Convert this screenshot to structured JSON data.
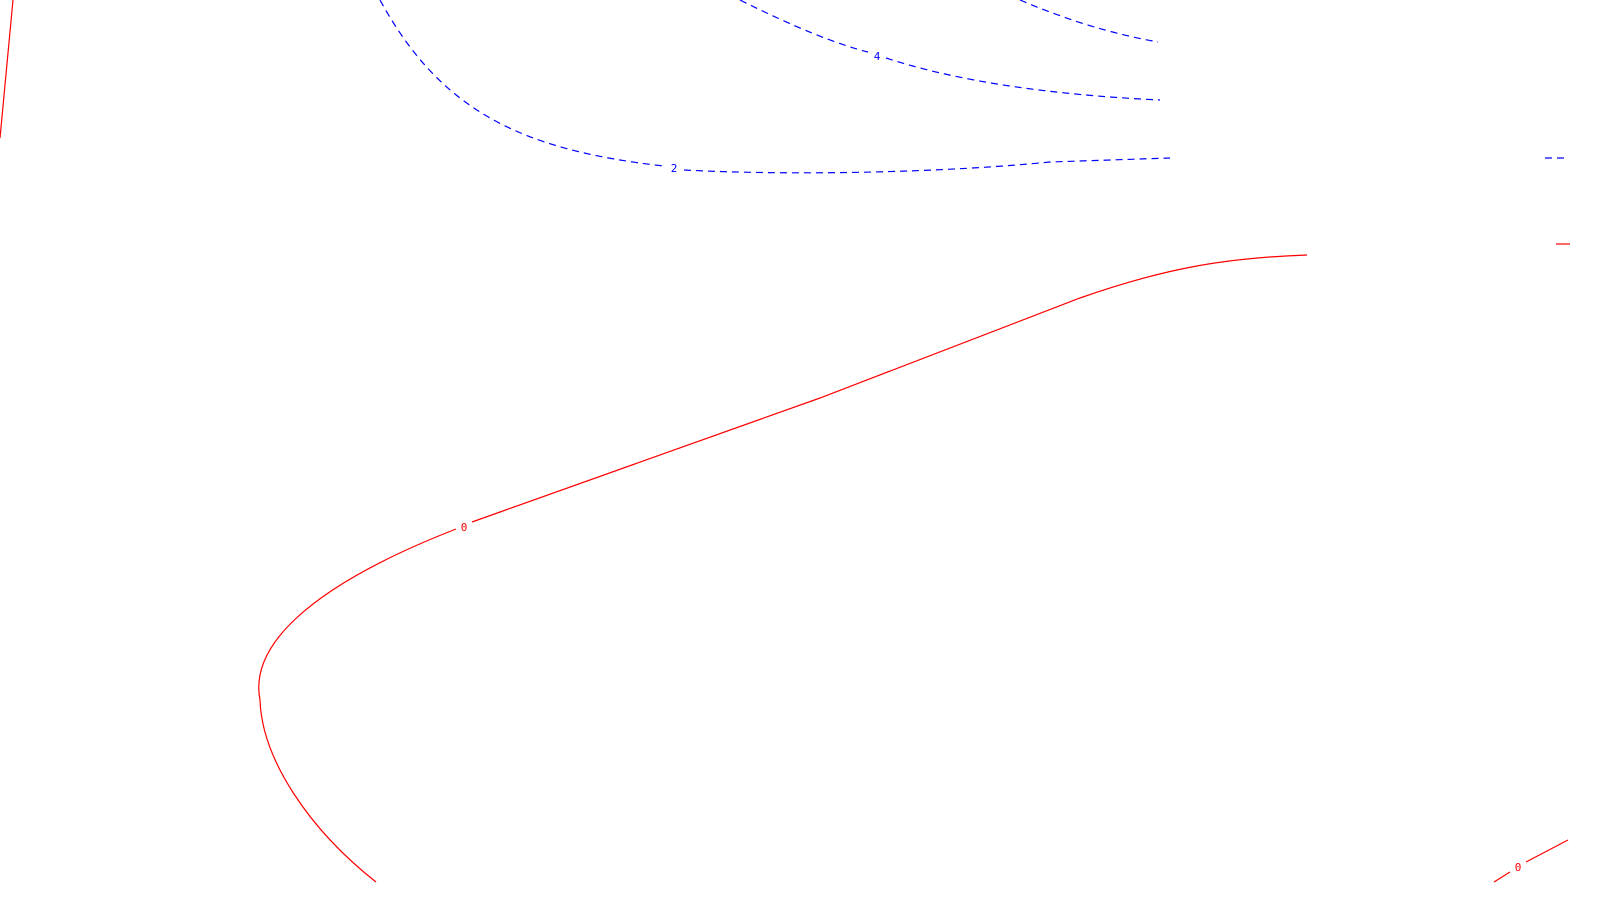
{
  "chart_data": {
    "type": "contour",
    "title": "",
    "xlabel": "",
    "ylabel": "",
    "grid": false,
    "axes_visible": false,
    "contours": [
      {
        "level": "4",
        "color": "#0000ff",
        "style": "dashed",
        "segments": 2
      },
      {
        "level": "2",
        "color": "#0000ff",
        "style": "dashed",
        "segments": 2
      },
      {
        "level": "0",
        "color": "#ff0000",
        "style": "solid",
        "segments": 4
      }
    ],
    "labels": [
      {
        "text": "4",
        "level": "4",
        "color": "#0000ff"
      },
      {
        "text": "2",
        "level": "2",
        "color": "#0000ff"
      },
      {
        "text": "0",
        "level": "0",
        "color": "#ff0000"
      },
      {
        "text": "0",
        "level": "0",
        "color": "#ff0000"
      }
    ]
  }
}
